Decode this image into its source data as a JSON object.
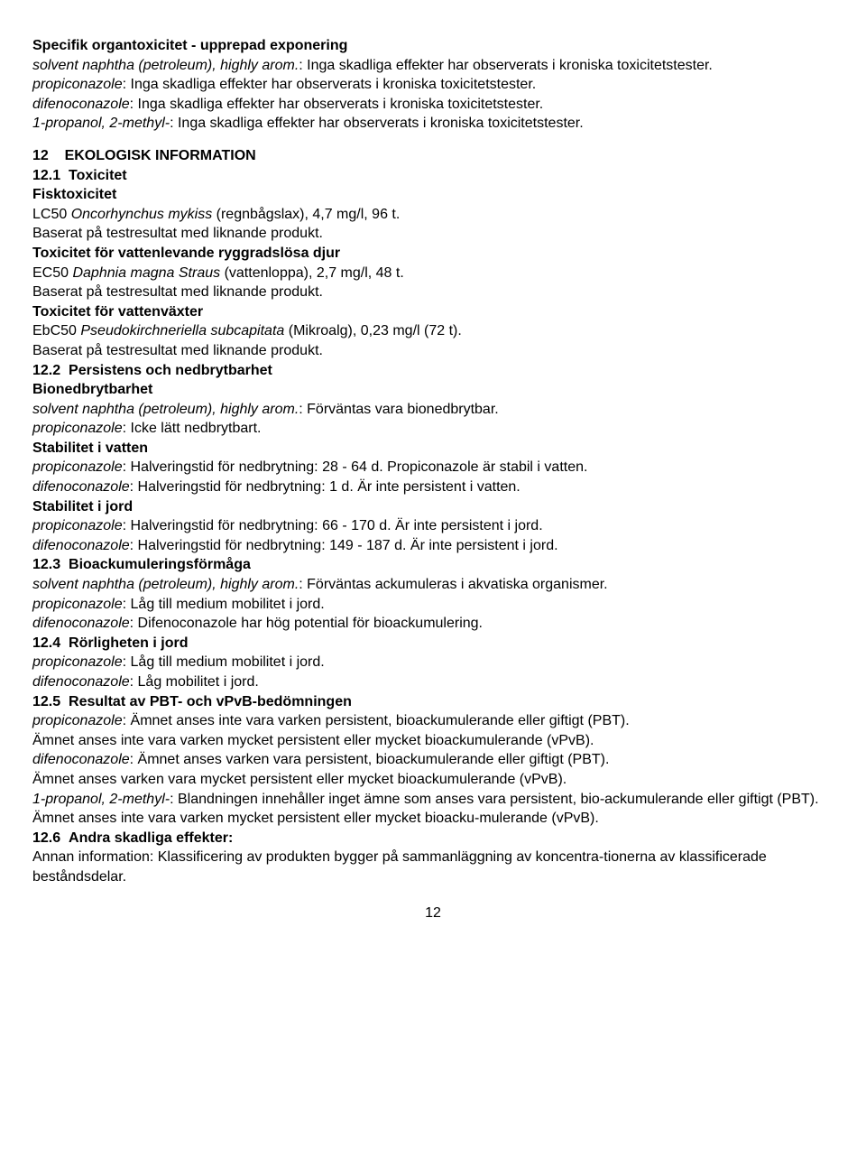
{
  "s11": {
    "heading": "Specifik organtoxicitet - upprepad exponering",
    "lines": [
      {
        "pre_i": "solvent naphtha (petroleum), highly arom.",
        "post": ": Inga skadliga effekter har observerats i kroniska toxicitetstester."
      },
      {
        "pre_i": "propiconazole",
        "post": ": Inga skadliga effekter har observerats i kroniska toxicitetstester."
      },
      {
        "pre_i": "difenoconazole",
        "post": ": Inga skadliga effekter har observerats i kroniska toxicitetstester."
      },
      {
        "pre_i": "1-propanol, 2-methyl-",
        "post": ": Inga skadliga effekter har observerats i kroniska toxicitetstester."
      }
    ]
  },
  "s12": {
    "title_num": "12",
    "title_text": "EKOLOGISK INFORMATION",
    "s12_1": {
      "num": "12.1",
      "label": "Toxicitet",
      "fisk_h": "Fisktoxicitet",
      "fisk_l1a": "LC50 ",
      "fisk_l1i": "Oncorhynchus mykiss",
      "fisk_l1b": " (regnbågslax), 4,7 mg/l, 96 t.",
      "fisk_l2": "Baserat på testresultat med liknande produkt.",
      "rygg_h": "Toxicitet för vattenlevande ryggradslösa djur",
      "rygg_l1a": "EC50 ",
      "rygg_l1i": "Daphnia magna Straus",
      "rygg_l1b": " (vattenloppa), 2,7 mg/l, 48 t.",
      "rygg_l2": "Baserat på testresultat med liknande produkt.",
      "vaxt_h": "Toxicitet för vattenväxter",
      "vaxt_l1a": "EbC50 ",
      "vaxt_l1i": "Pseudokirchneriella subcapitata",
      "vaxt_l1b": " (Mikroalg), 0,23 mg/l (72 t).",
      "vaxt_l2": "Baserat på testresultat med liknande produkt."
    },
    "s12_2": {
      "num": "12.2",
      "label": "Persistens och nedbrytbarhet",
      "bio_h": "Bionedbrytbarhet",
      "bio_l1_i": "solvent naphtha (petroleum), highly arom.",
      "bio_l1_t": ": Förväntas vara bionedbrytbar.",
      "bio_l2_i": "propiconazole",
      "bio_l2_t": ": Icke lätt nedbrytbart.",
      "stabv_h": "Stabilitet i vatten",
      "stabv_l1_i": "propiconazole",
      "stabv_l1_t": ": Halveringstid för nedbrytning: 28 - 64 d. Propiconazole är stabil i vatten.",
      "stabv_l2_i": "difenoconazole",
      "stabv_l2_t": ": Halveringstid för nedbrytning: 1 d. Är inte persistent i vatten.",
      "stabj_h": "Stabilitet i jord",
      "stabj_l1_i": "propiconazole",
      "stabj_l1_t": ": Halveringstid för nedbrytning: 66 - 170 d. Är inte persistent i jord.",
      "stabj_l2_i": "difenoconazole",
      "stabj_l2_t": ": Halveringstid för nedbrytning: 149 - 187 d. Är inte persistent i jord."
    },
    "s12_3": {
      "num": "12.3",
      "label": "Bioackumuleringsförmåga",
      "l1_i": "solvent naphtha (petroleum), highly arom.",
      "l1_t": ": Förväntas ackumuleras i akvatiska organismer.",
      "l2_i": "propiconazole",
      "l2_t": ": Låg till medium mobilitet i jord.",
      "l3_i": "difenoconazole",
      "l3_t": ": Difenoconazole har hög potential för bioackumulering."
    },
    "s12_4": {
      "num": "12.4",
      "label": "Rörligheten i jord",
      "l1_i": "propiconazole",
      "l1_t": ": Låg till medium mobilitet i jord.",
      "l2_i": "difenoconazole",
      "l2_t": ": Låg mobilitet i jord."
    },
    "s12_5": {
      "num": "12.5",
      "label": "Resultat av PBT- och vPvB-bedömningen",
      "l1_i": "propiconazole",
      "l1_t": ": Ämnet anses inte vara varken persistent, bioackumulerande eller giftigt (PBT).",
      "l2": "Ämnet anses inte vara varken mycket persistent eller mycket bioackumulerande (vPvB).",
      "l3_i": "difenoconazole",
      "l3_t": ": Ämnet anses varken vara persistent, bioackumulerande eller giftigt (PBT).",
      "l4": "Ämnet anses varken vara mycket persistent eller mycket bioackumulerande (vPvB).",
      "l5_i": "1-propanol, 2-methyl-",
      "l5_t": ": Blandningen innehåller inget ämne som anses vara persistent, bio-ackumulerande eller giftigt (PBT).",
      "l6": "Ämnet anses inte vara varken mycket persistent eller mycket bioacku-mulerande (vPvB)."
    },
    "s12_6": {
      "num": "12.6",
      "label": "Andra skadliga effekter:",
      "l1": "Annan information: Klassificering av produkten bygger på sammanläggning av koncentra-tionerna av klassificerade beståndsdelar."
    }
  },
  "page_number": "12"
}
